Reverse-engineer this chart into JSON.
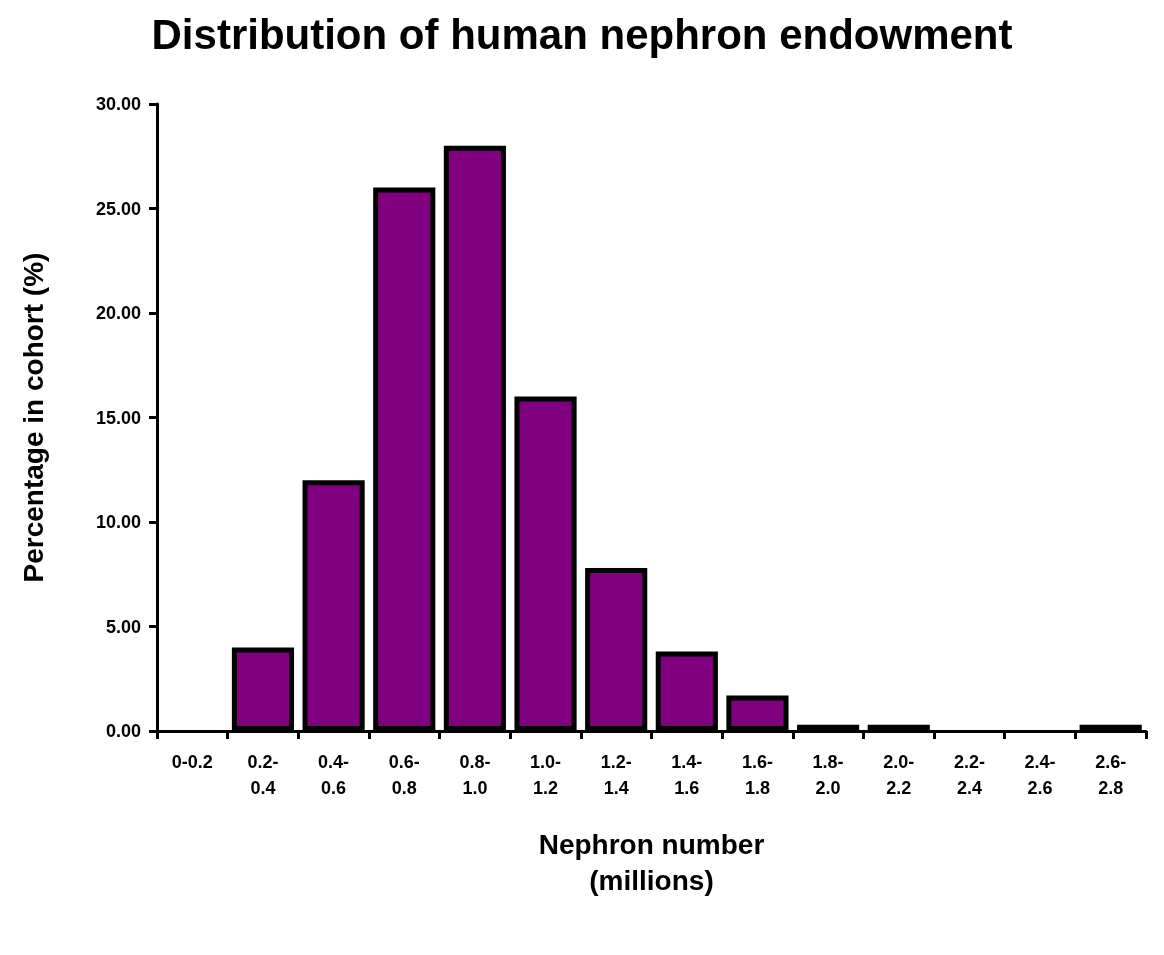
{
  "chart_data": {
    "type": "bar",
    "title": "Distribution of human nephron endowment",
    "xlabel": "Nephron number\n(millions)",
    "ylabel": "Percentage in cohort (%)",
    "categories": [
      "0-0.2",
      "0.2-0.4",
      "0.4-0.6",
      "0.6-0.8",
      "0.8-1.0",
      "1.0-1.2",
      "1.2-1.4",
      "1.4-1.6",
      "1.6-1.8",
      "1.8-2.0",
      "2.0-2.2",
      "2.2-2.4",
      "2.4-2.6",
      "2.6-2.8"
    ],
    "values": [
      0,
      4,
      12,
      26,
      28,
      16,
      7.8,
      3.8,
      1.7,
      0.3,
      0.3,
      0,
      0,
      0.3
    ],
    "color": "#800080",
    "ylim": [
      0,
      30
    ],
    "yticks": [
      {
        "value": 0,
        "label": "0.00"
      },
      {
        "value": 5,
        "label": "5.00"
      },
      {
        "value": 10,
        "label": "10.00"
      },
      {
        "value": 15,
        "label": "15.00"
      },
      {
        "value": 20,
        "label": "20.00"
      },
      {
        "value": 25,
        "label": "25.00"
      },
      {
        "value": 30,
        "label": "30.00"
      }
    ],
    "grid": false
  }
}
